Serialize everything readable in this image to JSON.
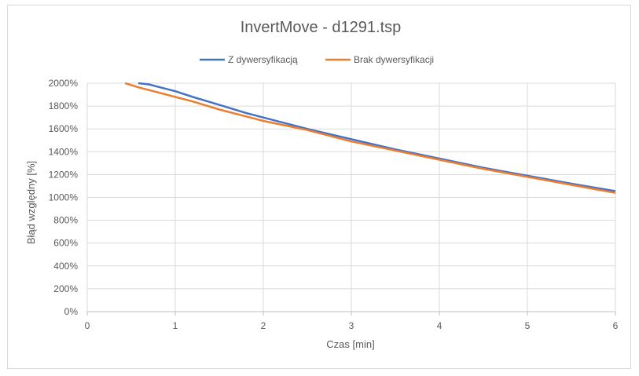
{
  "chart_data": {
    "type": "line",
    "title": "InvertMove - d1291.tsp",
    "xlabel": "Czas [min]",
    "ylabel": "Błąd względny [%]",
    "xlim": [
      0,
      6
    ],
    "ylim": [
      0,
      2000
    ],
    "x_ticks": [
      "0",
      "1",
      "2",
      "3",
      "4",
      "5",
      "6"
    ],
    "y_ticks": [
      "0%",
      "200%",
      "400%",
      "600%",
      "800%",
      "1000%",
      "1200%",
      "1400%",
      "1600%",
      "1800%",
      "2000%"
    ],
    "grid": true,
    "legend_position": "top",
    "series": [
      {
        "name": "Z dywersyfikacją",
        "color": "#4472C4",
        "x": [
          0.58,
          0.7,
          0.8,
          1.0,
          1.2,
          1.5,
          1.8,
          2.0,
          2.5,
          3.0,
          3.5,
          4.0,
          4.5,
          5.0,
          5.5,
          6.0
        ],
        "y": [
          2000,
          1990,
          1970,
          1930,
          1880,
          1810,
          1740,
          1700,
          1600,
          1510,
          1420,
          1340,
          1260,
          1190,
          1120,
          1055
        ]
      },
      {
        "name": "Brak dywersyfikacji",
        "color": "#ED7D31",
        "x": [
          0.43,
          0.6,
          0.8,
          1.0,
          1.2,
          1.5,
          1.8,
          2.0,
          2.5,
          3.0,
          3.5,
          4.0,
          4.5,
          5.0,
          5.5,
          6.0
        ],
        "y": [
          2000,
          1960,
          1920,
          1880,
          1840,
          1770,
          1710,
          1670,
          1590,
          1490,
          1410,
          1330,
          1250,
          1180,
          1110,
          1040
        ]
      }
    ]
  }
}
